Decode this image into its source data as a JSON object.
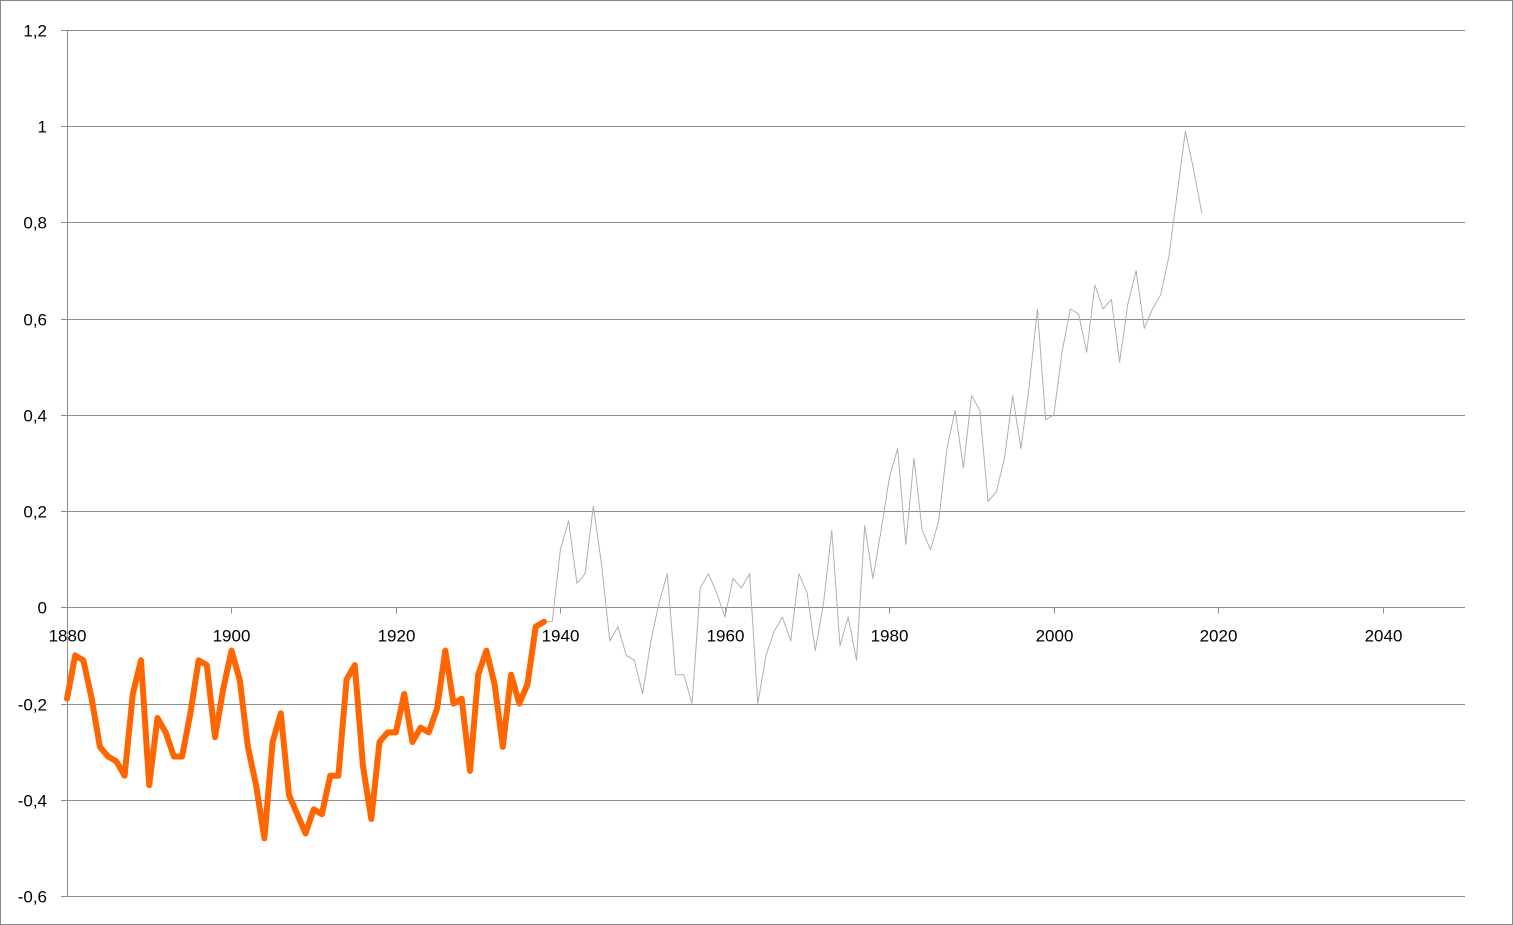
{
  "chart_data": {
    "type": "line",
    "title": "",
    "xlabel": "",
    "ylabel": "",
    "xlim": [
      1880,
      2050
    ],
    "ylim": [
      -0.6,
      1.2
    ],
    "x_ticks": [
      1880,
      1900,
      1920,
      1940,
      1960,
      1980,
      2000,
      2020,
      2040
    ],
    "x_tick_labels": [
      "1880",
      "1900",
      "1920",
      "1940",
      "1960",
      "1980",
      "2000",
      "2020",
      "2040"
    ],
    "y_ticks": [
      -0.6,
      -0.4,
      -0.2,
      0,
      0.2,
      0.4,
      0.6,
      0.8,
      1,
      1.2
    ],
    "y_tick_labels": [
      "-0,6",
      "-0,4",
      "-0,2",
      "0",
      "0,2",
      "0,4",
      "0,6",
      "0,8",
      "1",
      "1,2"
    ],
    "grid": "horizontal",
    "legend": "none",
    "series": [
      {
        "color": "#ff6600",
        "x": [
          1880,
          1881,
          1882,
          1883,
          1884,
          1885,
          1886,
          1887,
          1888,
          1889,
          1890,
          1891,
          1892,
          1893,
          1894,
          1895,
          1896,
          1897,
          1898,
          1899,
          1900,
          1901,
          1902,
          1903,
          1904,
          1905,
          1906,
          1907,
          1908,
          1909,
          1910,
          1911,
          1912,
          1913,
          1914,
          1915,
          1916,
          1917,
          1918,
          1919,
          1920,
          1921,
          1922,
          1923,
          1924,
          1925,
          1926,
          1927,
          1928,
          1929,
          1930,
          1931,
          1932,
          1933,
          1934,
          1935,
          1936,
          1937,
          1938
        ],
        "values": [
          -0.19,
          -0.1,
          -0.11,
          -0.19,
          -0.29,
          -0.31,
          -0.32,
          -0.35,
          -0.18,
          -0.11,
          -0.37,
          -0.23,
          -0.26,
          -0.31,
          -0.31,
          -0.22,
          -0.11,
          -0.12,
          -0.27,
          -0.17,
          -0.09,
          -0.15,
          -0.29,
          -0.37,
          -0.48,
          -0.28,
          -0.22,
          -0.39,
          -0.43,
          -0.47,
          -0.42,
          -0.43,
          -0.35,
          -0.35,
          -0.15,
          -0.12,
          -0.33,
          -0.44,
          -0.28,
          -0.26,
          -0.26,
          -0.18,
          -0.28,
          -0.25,
          -0.26,
          -0.21,
          -0.09,
          -0.2,
          -0.19,
          -0.34,
          -0.14,
          -0.09,
          -0.16,
          -0.29,
          -0.14,
          -0.2,
          -0.16,
          -0.04,
          -0.03
        ]
      },
      {
        "color": "#b0b0b0",
        "x": [
          1938,
          1939,
          1940,
          1941,
          1942,
          1943,
          1944,
          1945,
          1946,
          1947,
          1948,
          1949,
          1950,
          1951,
          1952,
          1953,
          1954,
          1955,
          1956,
          1957,
          1958,
          1959,
          1960,
          1961,
          1962,
          1963,
          1964,
          1965,
          1966,
          1967,
          1968,
          1969,
          1970,
          1971,
          1972,
          1973,
          1974,
          1975,
          1976,
          1977,
          1978,
          1979,
          1980,
          1981,
          1982,
          1983,
          1984,
          1985,
          1986,
          1987,
          1988,
          1989,
          1990,
          1991,
          1992,
          1993,
          1994,
          1995,
          1996,
          1997,
          1998,
          1999,
          2000,
          2001,
          2002,
          2003,
          2004,
          2005,
          2006,
          2007,
          2008,
          2009,
          2010,
          2011,
          2012,
          2013,
          2014,
          2015,
          2016,
          2017,
          2018
        ],
        "values": [
          -0.03,
          -0.03,
          0.12,
          0.18,
          0.05,
          0.07,
          0.21,
          0.09,
          -0.07,
          -0.04,
          -0.1,
          -0.11,
          -0.18,
          -0.07,
          0.01,
          0.07,
          -0.14,
          -0.14,
          -0.2,
          0.04,
          0.07,
          0.03,
          -0.02,
          0.06,
          0.04,
          0.07,
          -0.2,
          -0.1,
          -0.05,
          -0.02,
          -0.07,
          0.07,
          0.03,
          -0.09,
          0.01,
          0.16,
          -0.08,
          -0.02,
          -0.11,
          0.17,
          0.06,
          0.16,
          0.27,
          0.33,
          0.13,
          0.31,
          0.16,
          0.12,
          0.18,
          0.33,
          0.41,
          0.29,
          0.44,
          0.41,
          0.22,
          0.24,
          0.31,
          0.44,
          0.33,
          0.46,
          0.62,
          0.39,
          0.4,
          0.53,
          0.62,
          0.61,
          0.53,
          0.67,
          0.62,
          0.64,
          0.51,
          0.63,
          0.7,
          0.58,
          0.62,
          0.65,
          0.73,
          0.86,
          0.99,
          0.91,
          0.82
        ]
      }
    ]
  }
}
